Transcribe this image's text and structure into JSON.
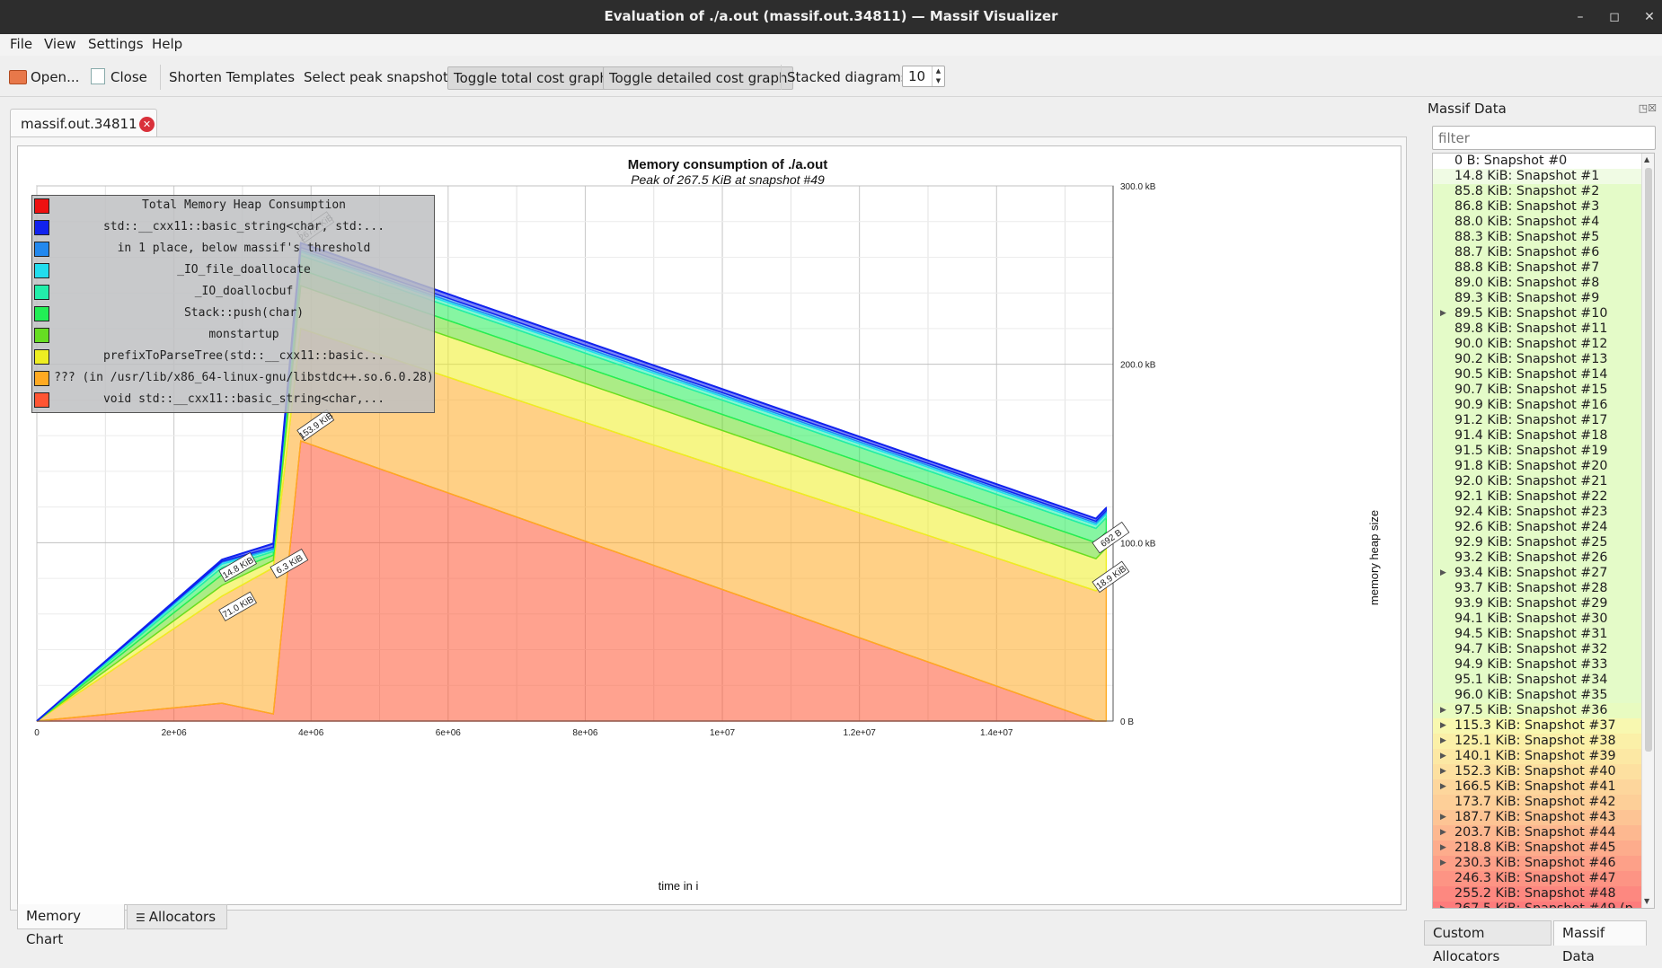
{
  "window": {
    "title": "Evaluation of ./a.out (massif.out.34811) — Massif Visualizer",
    "min": "–",
    "max": "◻",
    "close": "✕"
  },
  "menu": {
    "file": "File",
    "view": "View",
    "settings": "Settings",
    "help": "Help"
  },
  "toolbar": {
    "open": "Open...",
    "close": "Close",
    "shorten": "Shorten Templates",
    "select_peak": "Select peak snapshot",
    "toggle_total": "Toggle total cost graph",
    "toggle_detailed": "Toggle detailed cost graph",
    "stacked_label": "Stacked diagrams:",
    "stacked_value": "10"
  },
  "doc_tab": {
    "label": "massif.out.34811"
  },
  "bottom_tabs": {
    "memory_chart": "Memory Chart",
    "allocators": "Allocators"
  },
  "chart_data": {
    "type": "area",
    "title": "Memory consumption of ./a.out",
    "subtitle": "Peak of 267.5 KiB at snapshot #49",
    "xlabel": "time in i",
    "ylabel": "memory heap size",
    "x_ticks": [
      "0",
      "2e+06",
      "4e+06",
      "6e+06",
      "8e+06",
      "1e+07",
      "1.2e+07",
      "1.4e+07"
    ],
    "x_tick_values": [
      0,
      2000000,
      4000000,
      6000000,
      8000000,
      10000000,
      12000000,
      14000000
    ],
    "y_ticks": [
      "0 B",
      "100.0 kB",
      "200.0 kB",
      "300.0 kB"
    ],
    "y_tick_values": [
      0,
      100,
      200,
      300
    ],
    "xlim": [
      0,
      15700000
    ],
    "ylim": [
      0,
      300
    ],
    "x": [
      0,
      2700000,
      3450000,
      3850000,
      15450000,
      15600000
    ],
    "series": [
      {
        "name": "void std::__cxx11::basic_string<char,...",
        "color": "#ff5533",
        "values": [
          0,
          10,
          4,
          157,
          0,
          0
        ]
      },
      {
        "name": "??? (in /usr/lib/x86_64-linux-gnu/libstdc++.so.6.0.28)",
        "color": "#ffaa22",
        "values": [
          0,
          60,
          82,
          63,
          73,
          78
        ]
      },
      {
        "name": "prefixToParseTree(std::__cxx11::basic...",
        "color": "#eeee22",
        "values": [
          0,
          6,
          4,
          24,
          18,
          19
        ]
      },
      {
        "name": "monstartup",
        "color": "#66dd22",
        "values": [
          0,
          6,
          3,
          9,
          9,
          9
        ]
      },
      {
        "name": "Stack::push(char)",
        "color": "#22ee55",
        "values": [
          0,
          4,
          2,
          8,
          8,
          8
        ]
      },
      {
        "name": "_IO_doallocbuf",
        "color": "#22eeaa",
        "values": [
          0,
          2,
          1,
          2,
          2,
          2
        ]
      },
      {
        "name": "_IO_file_doallocate",
        "color": "#22ddee",
        "values": [
          0,
          1,
          0.5,
          1,
          1,
          1
        ]
      },
      {
        "name": "in 1 place, below massif's threshold",
        "color": "#2288ee",
        "values": [
          0,
          0.5,
          1,
          1.5,
          1,
          1
        ]
      },
      {
        "name": "std::__cxx11::basic_string<char, std:...",
        "color": "#1122ee",
        "values": [
          0,
          1,
          2,
          2.5,
          1.5,
          1.5
        ]
      }
    ],
    "total_series": {
      "name": "Total Memory Heap Consumption",
      "color": "#ee1111"
    },
    "peak_labels": [
      "14.8 KiB",
      "71.0 KiB",
      "6.3 KiB",
      "267.5 KiB",
      "153.9 KiB",
      "692 B",
      "18.9 KiB"
    ]
  },
  "legend": [
    {
      "label": "Total Memory Heap Consumption",
      "color": "#ee1111"
    },
    {
      "label": "std::__cxx11::basic_string<char, std:...",
      "color": "#1122ee"
    },
    {
      "label": "in 1 place, below massif's threshold",
      "color": "#2288ee"
    },
    {
      "label": "_IO_file_doallocate",
      "color": "#22ddee"
    },
    {
      "label": "_IO_doallocbuf",
      "color": "#22eeaa"
    },
    {
      "label": "Stack::push(char)",
      "color": "#22ee55"
    },
    {
      "label": "monstartup",
      "color": "#66dd22"
    },
    {
      "label": "prefixToParseTree(std::__cxx11::basic...",
      "color": "#eeee22"
    },
    {
      "label": "??? (in /usr/lib/x86_64-linux-gnu/libstdc++.so.6.0.28)",
      "color": "#ffaa22"
    },
    {
      "label": "void std::__cxx11::basic_string<char,...",
      "color": "#ff5533"
    }
  ],
  "dock": {
    "title": "Massif Data",
    "filter_placeholder": "filter",
    "tabs": {
      "custom": "Custom Allocators",
      "massif": "Massif Data"
    },
    "snapshots": [
      {
        "label": "0 B: Snapshot #0",
        "expand": false,
        "color": "#ffffff"
      },
      {
        "label": "14.8 KiB: Snapshot #1",
        "expand": false,
        "color": "#f0fbe4"
      },
      {
        "label": "85.8 KiB: Snapshot #2",
        "expand": false,
        "color": "#e4fbc8"
      },
      {
        "label": "86.8 KiB: Snapshot #3",
        "expand": false,
        "color": "#e4fbc8"
      },
      {
        "label": "88.0 KiB: Snapshot #4",
        "expand": false,
        "color": "#e4fbc8"
      },
      {
        "label": "88.3 KiB: Snapshot #5",
        "expand": false,
        "color": "#e4fbc8"
      },
      {
        "label": "88.7 KiB: Snapshot #6",
        "expand": false,
        "color": "#e4fbc8"
      },
      {
        "label": "88.8 KiB: Snapshot #7",
        "expand": false,
        "color": "#e4fbc8"
      },
      {
        "label": "89.0 KiB: Snapshot #8",
        "expand": false,
        "color": "#e4fbc8"
      },
      {
        "label": "89.3 KiB: Snapshot #9",
        "expand": false,
        "color": "#e4fbc8"
      },
      {
        "label": "89.5 KiB: Snapshot #10",
        "expand": true,
        "color": "#e4fbc8"
      },
      {
        "label": "89.8 KiB: Snapshot #11",
        "expand": false,
        "color": "#e4fbc8"
      },
      {
        "label": "90.0 KiB: Snapshot #12",
        "expand": false,
        "color": "#e4fbc8"
      },
      {
        "label": "90.2 KiB: Snapshot #13",
        "expand": false,
        "color": "#e4fbc8"
      },
      {
        "label": "90.5 KiB: Snapshot #14",
        "expand": false,
        "color": "#e4fbc8"
      },
      {
        "label": "90.7 KiB: Snapshot #15",
        "expand": false,
        "color": "#e4fbc8"
      },
      {
        "label": "90.9 KiB: Snapshot #16",
        "expand": false,
        "color": "#e4fbc8"
      },
      {
        "label": "91.2 KiB: Snapshot #17",
        "expand": false,
        "color": "#e4fbc8"
      },
      {
        "label": "91.4 KiB: Snapshot #18",
        "expand": false,
        "color": "#e4fbc8"
      },
      {
        "label": "91.5 KiB: Snapshot #19",
        "expand": false,
        "color": "#e4fbc8"
      },
      {
        "label": "91.8 KiB: Snapshot #20",
        "expand": false,
        "color": "#e4fbc8"
      },
      {
        "label": "92.0 KiB: Snapshot #21",
        "expand": false,
        "color": "#e4fbc8"
      },
      {
        "label": "92.1 KiB: Snapshot #22",
        "expand": false,
        "color": "#e4fbc8"
      },
      {
        "label": "92.4 KiB: Snapshot #23",
        "expand": false,
        "color": "#e4fbc8"
      },
      {
        "label": "92.6 KiB: Snapshot #24",
        "expand": false,
        "color": "#e4fbc8"
      },
      {
        "label": "92.9 KiB: Snapshot #25",
        "expand": false,
        "color": "#e4fbc8"
      },
      {
        "label": "93.2 KiB: Snapshot #26",
        "expand": false,
        "color": "#e4fbc8"
      },
      {
        "label": "93.4 KiB: Snapshot #27",
        "expand": true,
        "color": "#e4fbc8"
      },
      {
        "label": "93.7 KiB: Snapshot #28",
        "expand": false,
        "color": "#e4fbc8"
      },
      {
        "label": "93.9 KiB: Snapshot #29",
        "expand": false,
        "color": "#e4fbc8"
      },
      {
        "label": "94.1 KiB: Snapshot #30",
        "expand": false,
        "color": "#e4fbc8"
      },
      {
        "label": "94.5 KiB: Snapshot #31",
        "expand": false,
        "color": "#e4fbc8"
      },
      {
        "label": "94.7 KiB: Snapshot #32",
        "expand": false,
        "color": "#e4fbc8"
      },
      {
        "label": "94.9 KiB: Snapshot #33",
        "expand": false,
        "color": "#e4fbc8"
      },
      {
        "label": "95.1 KiB: Snapshot #34",
        "expand": false,
        "color": "#e4fbc8"
      },
      {
        "label": "96.0 KiB: Snapshot #35",
        "expand": false,
        "color": "#e4fbc8"
      },
      {
        "label": "97.5 KiB: Snapshot #36",
        "expand": true,
        "color": "#e8fbc0"
      },
      {
        "label": "115.3 KiB: Snapshot #37",
        "expand": true,
        "color": "#f8f8b0"
      },
      {
        "label": "125.1 KiB: Snapshot #38",
        "expand": true,
        "color": "#fbf0a8"
      },
      {
        "label": "140.1 KiB: Snapshot #39",
        "expand": true,
        "color": "#fce8a4"
      },
      {
        "label": "152.3 KiB: Snapshot #40",
        "expand": true,
        "color": "#fde0a0"
      },
      {
        "label": "166.5 KiB: Snapshot #41",
        "expand": true,
        "color": "#fdd69c"
      },
      {
        "label": "173.7 KiB: Snapshot #42",
        "expand": false,
        "color": "#fdcf98"
      },
      {
        "label": "187.7 KiB: Snapshot #43",
        "expand": true,
        "color": "#fdc494"
      },
      {
        "label": "203.7 KiB: Snapshot #44",
        "expand": true,
        "color": "#fdb890"
      },
      {
        "label": "218.8 KiB: Snapshot #45",
        "expand": true,
        "color": "#fdac8c"
      },
      {
        "label": "230.3 KiB: Snapshot #46",
        "expand": true,
        "color": "#fda088"
      },
      {
        "label": "246.3 KiB: Snapshot #47",
        "expand": false,
        "color": "#fd9484"
      },
      {
        "label": "255.2 KiB: Snapshot #48",
        "expand": false,
        "color": "#fd8880"
      },
      {
        "label": "267.5 KiB: Snapshot #49 (p",
        "expand": true,
        "color": "#fd7c7c"
      }
    ]
  }
}
